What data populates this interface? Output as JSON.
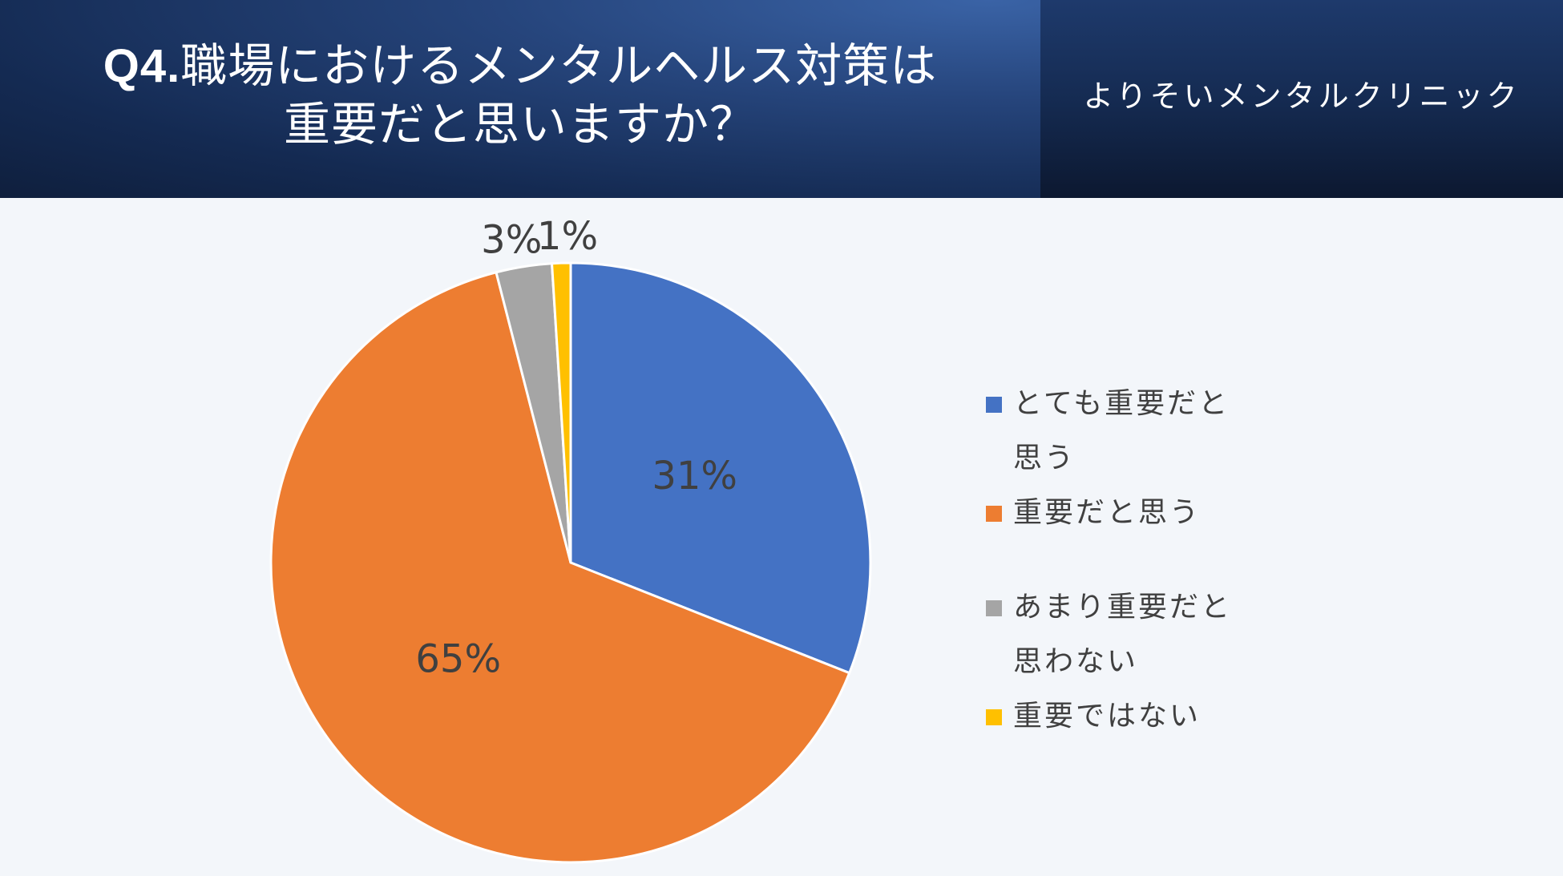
{
  "header": {
    "title_prefix": "Q4.",
    "title_line1_rest": "職場におけるメンタルヘルス対策は",
    "title_line2": "重要だと思いますか？",
    "brand": "よりそいメンタルクリニック"
  },
  "colors": {
    "accent_blue": "#4472c4",
    "accent_orange": "#ed7d31",
    "accent_gray": "#a5a5a5",
    "accent_yellow": "#ffc000"
  },
  "chart_data": {
    "type": "pie",
    "title": "",
    "slices": [
      {
        "label": "とても重要だと思う",
        "value": 31,
        "display": "31%",
        "color": "#4472c4"
      },
      {
        "label": "重要だと思う",
        "value": 65,
        "display": "65%",
        "color": "#ed7d31"
      },
      {
        "label": "あまり重要だと思わない",
        "value": 3,
        "display": "3%",
        "color": "#a5a5a5"
      },
      {
        "label": "重要ではない",
        "value": 1,
        "display": "1%",
        "color": "#ffc000"
      }
    ],
    "legend_position": "right"
  },
  "legend": {
    "items": [
      {
        "label_line1": "とても重要だと",
        "label_line2": "思う"
      },
      {
        "label_line1": "重要だと思う",
        "label_line2": ""
      },
      {
        "label_line1": "あまり重要だと",
        "label_line2": "思わない"
      },
      {
        "label_line1": "重要ではない",
        "label_line2": ""
      }
    ]
  }
}
